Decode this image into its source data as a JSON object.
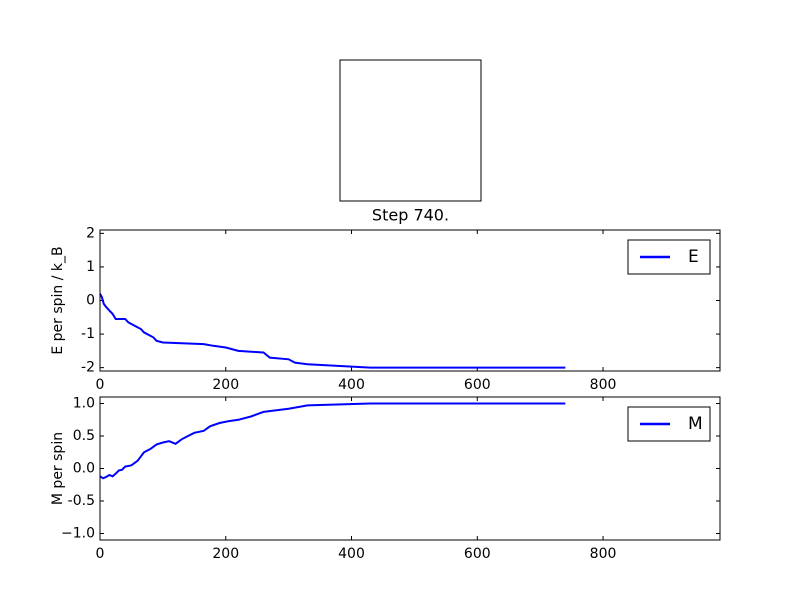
{
  "chart_data": [
    {
      "type": "image",
      "xlabel": "Step 740."
    },
    {
      "type": "line",
      "ylabel": "E per spin / k_B",
      "x": [
        0,
        3,
        6,
        10,
        15,
        20,
        25,
        30,
        40,
        45,
        50,
        60,
        65,
        70,
        80,
        85,
        90,
        100,
        165,
        180,
        200,
        220,
        260,
        270,
        300,
        310,
        330,
        430,
        740
      ],
      "series": [
        {
          "name": "E",
          "color": "#0000ff",
          "values": [
            0.2,
            0.1,
            -0.1,
            -0.2,
            -0.3,
            -0.4,
            -0.55,
            -0.55,
            -0.55,
            -0.65,
            -0.7,
            -0.8,
            -0.85,
            -0.95,
            -1.05,
            -1.1,
            -1.2,
            -1.25,
            -1.3,
            -1.35,
            -1.4,
            -1.5,
            -1.55,
            -1.7,
            -1.75,
            -1.85,
            -1.9,
            -2.0,
            -2.0
          ]
        }
      ],
      "xlim": [
        0,
        986
      ],
      "xticks": [
        0,
        200,
        400,
        600,
        800
      ],
      "ylim": [
        -2.1,
        2.1
      ],
      "yticks": [
        -2,
        -1,
        0,
        1,
        2
      ],
      "legend": "upper right"
    },
    {
      "type": "line",
      "ylabel": "M per spin",
      "x": [
        0,
        5,
        10,
        15,
        20,
        25,
        30,
        35,
        40,
        50,
        60,
        70,
        80,
        90,
        100,
        110,
        120,
        130,
        140,
        150,
        165,
        175,
        190,
        205,
        220,
        240,
        260,
        300,
        330,
        430,
        740
      ],
      "series": [
        {
          "name": "M",
          "color": "#0000ff",
          "values": [
            -0.12,
            -0.15,
            -0.13,
            -0.1,
            -0.12,
            -0.08,
            -0.03,
            -0.02,
            0.03,
            0.05,
            0.12,
            0.25,
            0.3,
            0.37,
            0.4,
            0.42,
            0.38,
            0.45,
            0.5,
            0.55,
            0.58,
            0.65,
            0.7,
            0.73,
            0.75,
            0.8,
            0.87,
            0.92,
            0.97,
            1.0,
            1.0
          ]
        }
      ],
      "xlim": [
        0,
        986
      ],
      "xticks": [
        0,
        200,
        400,
        600,
        800
      ],
      "ylim": [
        -1.1,
        1.1
      ],
      "yticks": [
        {
          "value": -1.0,
          "label": "−1.0"
        },
        -0.5,
        {
          "value": 0.0,
          "label": "0.0"
        },
        0.5,
        {
          "value": 1.0,
          "label": "1.0"
        }
      ],
      "legend": "upper right"
    }
  ]
}
